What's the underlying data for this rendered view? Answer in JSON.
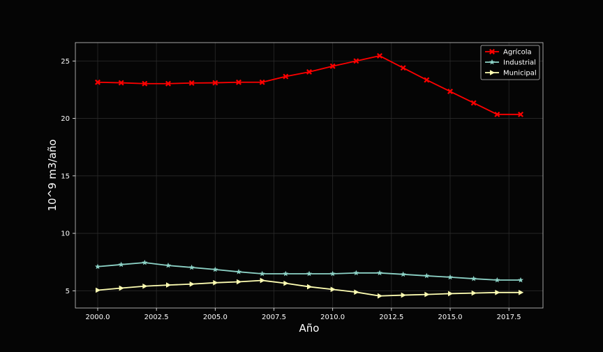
{
  "chart_data": {
    "type": "line",
    "xlabel": "Año",
    "ylabel": "10^9 m3/año",
    "xlim": [
      1999.05,
      2018.95
    ],
    "ylim": [
      3.5,
      26.6
    ],
    "xticks": [
      2000,
      2002.5,
      2005,
      2007.5,
      2010,
      2012.5,
      2015,
      2017.5
    ],
    "xtick_labels": [
      "2000.0",
      "2002.5",
      "2005.0",
      "2007.5",
      "2010.0",
      "2012.5",
      "2015.0",
      "2017.5"
    ],
    "yticks": [
      5,
      10,
      15,
      20,
      25
    ],
    "ytick_labels": [
      "5",
      "10",
      "15",
      "20",
      "25"
    ],
    "grid": true,
    "legend_position": "top-right",
    "x": [
      2000,
      2001,
      2002,
      2003,
      2004,
      2005,
      2006,
      2007,
      2008,
      2009,
      2010,
      2011,
      2012,
      2013,
      2014,
      2015,
      2016,
      2017,
      2018
    ],
    "series": [
      {
        "name": "Agrícola",
        "color": "#ff0000",
        "marker": "x",
        "values": [
          23.15,
          23.1,
          23.03,
          23.03,
          23.08,
          23.1,
          23.15,
          23.15,
          23.65,
          24.05,
          24.55,
          25.0,
          25.45,
          24.4,
          23.35,
          22.35,
          21.35,
          20.35,
          20.35
        ]
      },
      {
        "name": "Industrial",
        "color": "#8dd3c7",
        "marker": "star",
        "values": [
          7.1,
          7.28,
          7.45,
          7.2,
          7.03,
          6.85,
          6.65,
          6.48,
          6.48,
          6.48,
          6.48,
          6.55,
          6.55,
          6.43,
          6.3,
          6.18,
          6.05,
          5.93,
          5.93
        ]
      },
      {
        "name": "Municipal",
        "color": "#ffffb3",
        "marker": "triangle-right",
        "values": [
          5.05,
          5.23,
          5.4,
          5.5,
          5.58,
          5.7,
          5.78,
          5.9,
          5.65,
          5.35,
          5.12,
          4.88,
          4.55,
          4.62,
          4.68,
          4.75,
          4.8,
          4.85,
          4.85
        ]
      }
    ]
  }
}
